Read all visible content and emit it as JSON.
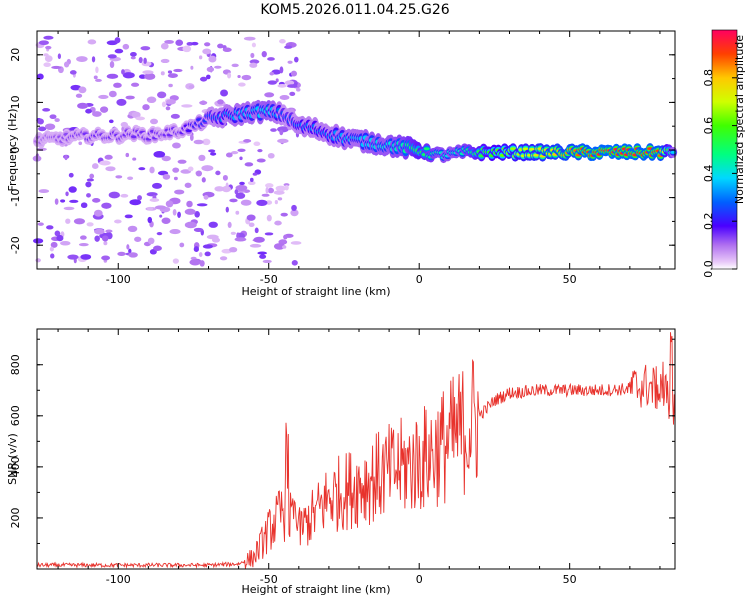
{
  "title": "KOM5.2026.011.04.25.G26",
  "colors": {
    "snr_line": "#e8322c",
    "frame": "#000000"
  },
  "chart_data": [
    {
      "type": "heatmap",
      "name": "spectrogram",
      "xlabel": "Height of straight line (km)",
      "ylabel": "Frequency (Hz)",
      "xlim": [
        -127,
        85
      ],
      "ylim": [
        -25,
        25
      ],
      "xticks": [
        -100,
        -50,
        0,
        50
      ],
      "xtick_labels": [
        "-100",
        "-50",
        "0",
        "50"
      ],
      "yticks": [
        -20,
        -10,
        0,
        10,
        20
      ],
      "ytick_labels": [
        "-20",
        "-10",
        "0",
        "10",
        "20"
      ],
      "ridge": {
        "description": "dominant frequency vs height",
        "x": [
          -127,
          -110,
          -100,
          -95,
          -90,
          -80,
          -75,
          -70,
          -65,
          -60,
          -55,
          -50,
          -45,
          -42,
          -40,
          -35,
          -30,
          -25,
          -20,
          -15,
          -10,
          -5,
          0,
          5,
          10,
          15,
          20,
          30,
          40,
          50,
          60,
          70,
          80,
          85
        ],
        "y": [
          2,
          3,
          3,
          3.5,
          3,
          4,
          5,
          6.5,
          7,
          7.5,
          8,
          8,
          7.5,
          6,
          5,
          4.5,
          3.5,
          2.5,
          2,
          1.5,
          1,
          0.5,
          0,
          -1,
          -1,
          -0.5,
          -0.5,
          -0.5,
          -0.5,
          -0.5,
          -0.5,
          -0.5,
          -0.5,
          -0.5
        ],
        "amplitude": [
          0.1,
          0.15,
          0.15,
          0.15,
          0.15,
          0.15,
          0.2,
          0.25,
          0.3,
          0.35,
          0.35,
          0.4,
          0.25,
          0.25,
          0.3,
          0.3,
          0.3,
          0.35,
          0.35,
          0.4,
          0.4,
          0.45,
          0.55,
          0.45,
          0.4,
          0.45,
          0.55,
          0.65,
          0.75,
          0.85,
          0.95,
          0.95,
          0.9,
          0.3
        ]
      },
      "colorbar": {
        "label": "Normalized spectral amplitude",
        "range": [
          0,
          1
        ],
        "ticks": [
          0.0,
          0.2,
          0.4,
          0.6,
          0.8
        ],
        "tick_labels": [
          "0.0",
          "0.2",
          "0.4",
          "0.6",
          "0.8"
        ]
      }
    },
    {
      "type": "line",
      "name": "snr",
      "xlabel": "Height of straight line (km)",
      "ylabel": "SNR (v/v)",
      "xlim": [
        -127,
        85
      ],
      "ylim": [
        0,
        940
      ],
      "xticks": [
        -100,
        -50,
        0,
        50
      ],
      "xtick_labels": [
        "-100",
        "-50",
        "0",
        "50"
      ],
      "yticks": [
        200,
        400,
        600,
        800
      ],
      "ytick_labels": [
        "200",
        "400",
        "600",
        "800"
      ],
      "trend": {
        "x": [
          -127,
          -100,
          -70,
          -60,
          -55,
          -50,
          -45,
          -40,
          -35,
          -30,
          -20,
          -10,
          0,
          10,
          20,
          25,
          30,
          40,
          50,
          60,
          70,
          75,
          80,
          85
        ],
        "y": [
          15,
          15,
          15,
          20,
          45,
          150,
          230,
          150,
          210,
          280,
          330,
          380,
          420,
          500,
          600,
          660,
          690,
          700,
          700,
          700,
          705,
          720,
          700,
          650
        ]
      }
    }
  ]
}
